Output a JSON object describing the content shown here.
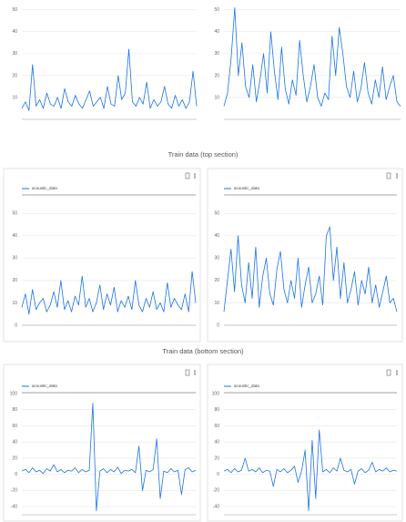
{
  "captions": [
    "Train data (top section)",
    "Train data (bottom section)"
  ],
  "chart_data": [
    {
      "type": "line",
      "color": "#1a73e8",
      "ylim": [
        0,
        52
      ],
      "yticks": [
        10,
        20,
        30,
        40,
        50
      ],
      "grid": true,
      "values": [
        5,
        8,
        4,
        25,
        6,
        9,
        5,
        12,
        7,
        6,
        10,
        5,
        14,
        8,
        6,
        11,
        7,
        5,
        9,
        13,
        6,
        8,
        10,
        5,
        15,
        7,
        6,
        20,
        9,
        12,
        32,
        8,
        6,
        10,
        7,
        17,
        5,
        9,
        6,
        8,
        15,
        7,
        5,
        11,
        6,
        9,
        5,
        8,
        22,
        6
      ]
    },
    {
      "type": "line",
      "color": "#1a73e8",
      "ylim": [
        0,
        52
      ],
      "yticks": [
        10,
        20,
        30,
        40,
        50
      ],
      "grid": true,
      "values": [
        6,
        12,
        28,
        51,
        20,
        35,
        15,
        10,
        25,
        8,
        18,
        30,
        12,
        40,
        22,
        9,
        33,
        14,
        7,
        18,
        11,
        36,
        20,
        8,
        15,
        25,
        10,
        6,
        12,
        9,
        38,
        20,
        42,
        30,
        15,
        10,
        22,
        8,
        14,
        26,
        12,
        7,
        18,
        10,
        24,
        9,
        15,
        20,
        8,
        6
      ]
    },
    {
      "type": "line",
      "ylim": [
        0,
        55
      ],
      "yticks": [
        0,
        10,
        20,
        30,
        40,
        50
      ],
      "grid": true,
      "series": [
        {
          "name": "acoustic_data",
          "color": "#1a73e8",
          "values": [
            8,
            14,
            5,
            16,
            7,
            10,
            12,
            6,
            9,
            15,
            8,
            20,
            7,
            11,
            6,
            13,
            9,
            22,
            8,
            12,
            6,
            10,
            18,
            7,
            14,
            9,
            17,
            6,
            11,
            8,
            13,
            7,
            20,
            9,
            6,
            12,
            8,
            15,
            7,
            10,
            6,
            19,
            8,
            12,
            9,
            7,
            14,
            6,
            24,
            10
          ]
        }
      ]
    },
    {
      "type": "line",
      "ylim": [
        0,
        55
      ],
      "yticks": [
        0,
        10,
        20,
        30,
        40,
        50
      ],
      "grid": true,
      "series": [
        {
          "name": "acoustic_data",
          "color": "#1a73e8",
          "values": [
            6,
            20,
            34,
            15,
            40,
            18,
            10,
            28,
            12,
            35,
            8,
            22,
            30,
            14,
            9,
            25,
            33,
            16,
            10,
            20,
            12,
            30,
            8,
            18,
            26,
            10,
            14,
            22,
            9,
            40,
            44,
            20,
            35,
            12,
            28,
            10,
            16,
            24,
            9,
            20,
            14,
            26,
            10,
            18,
            8,
            15,
            22,
            10,
            12,
            6
          ]
        }
      ]
    },
    {
      "type": "line",
      "ylim": [
        -50,
        100
      ],
      "yticks": [
        -40,
        -20,
        0,
        20,
        40,
        60,
        80,
        100
      ],
      "grid": true,
      "series": [
        {
          "name": "acoustic_data",
          "color": "#1a73e8",
          "values": [
            4,
            6,
            2,
            8,
            3,
            5,
            1,
            7,
            4,
            12,
            3,
            6,
            2,
            5,
            4,
            8,
            2,
            6,
            3,
            5,
            88,
            -45,
            4,
            7,
            2,
            6,
            3,
            9,
            1,
            5,
            4,
            6,
            2,
            35,
            -20,
            5,
            3,
            6,
            44,
            -30,
            4,
            2,
            7,
            3,
            5,
            -25,
            6,
            8,
            3,
            5
          ]
        }
      ]
    },
    {
      "type": "line",
      "ylim": [
        -50,
        100
      ],
      "yticks": [
        -40,
        -20,
        0,
        20,
        40,
        60,
        80,
        100
      ],
      "grid": true,
      "series": [
        {
          "name": "acoustic_data",
          "color": "#1a73e8",
          "values": [
            4,
            6,
            2,
            7,
            3,
            5,
            20,
            4,
            6,
            3,
            8,
            2,
            5,
            4,
            -15,
            6,
            3,
            7,
            2,
            5,
            10,
            -10,
            4,
            30,
            -45,
            42,
            -30,
            55,
            3,
            6,
            2,
            8,
            4,
            20,
            5,
            3,
            6,
            -12,
            4,
            7,
            2,
            5,
            15,
            3,
            6,
            4,
            8,
            3,
            5,
            4
          ]
        }
      ]
    }
  ]
}
